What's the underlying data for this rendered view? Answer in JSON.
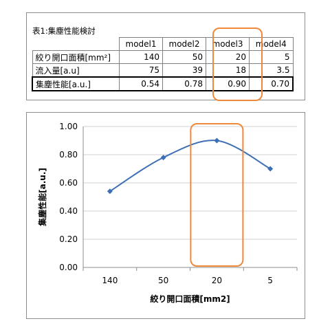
{
  "table": {
    "title": "表1:集塵性能検討",
    "headers": [
      "model1",
      "model2",
      "model3",
      "model4"
    ],
    "rows": [
      {
        "label": "絞り開口面積[mm²]",
        "values": [
          "140",
          "50",
          "20",
          "5"
        ]
      },
      {
        "label": "流入量[a.u]",
        "values": [
          "75",
          "39",
          "18",
          "3.5"
        ]
      },
      {
        "label": "集塵性能[a.u.]",
        "values": [
          "0.54",
          "0.78",
          "0.90",
          "0.70"
        ]
      }
    ],
    "highlight_column": "model3",
    "highlight_color": "#f0883a"
  },
  "chart_data": {
    "type": "line",
    "categories": [
      "140",
      "50",
      "20",
      "5"
    ],
    "series": [
      {
        "values": [
          0.54,
          0.78,
          0.9,
          0.7
        ],
        "color": "#3c6fb5",
        "marker": "diamond",
        "smooth": true
      }
    ],
    "xlabel": "絞り開口面積[mm2]",
    "ylabel": "集塵性能[a.u.]",
    "ylim": [
      0,
      1
    ],
    "yticks": [
      "0.00",
      "0.20",
      "0.40",
      "0.60",
      "0.80",
      "1.00"
    ],
    "grid": "horizontal",
    "highlight_category": "20",
    "highlight_color": "#f0883a"
  }
}
